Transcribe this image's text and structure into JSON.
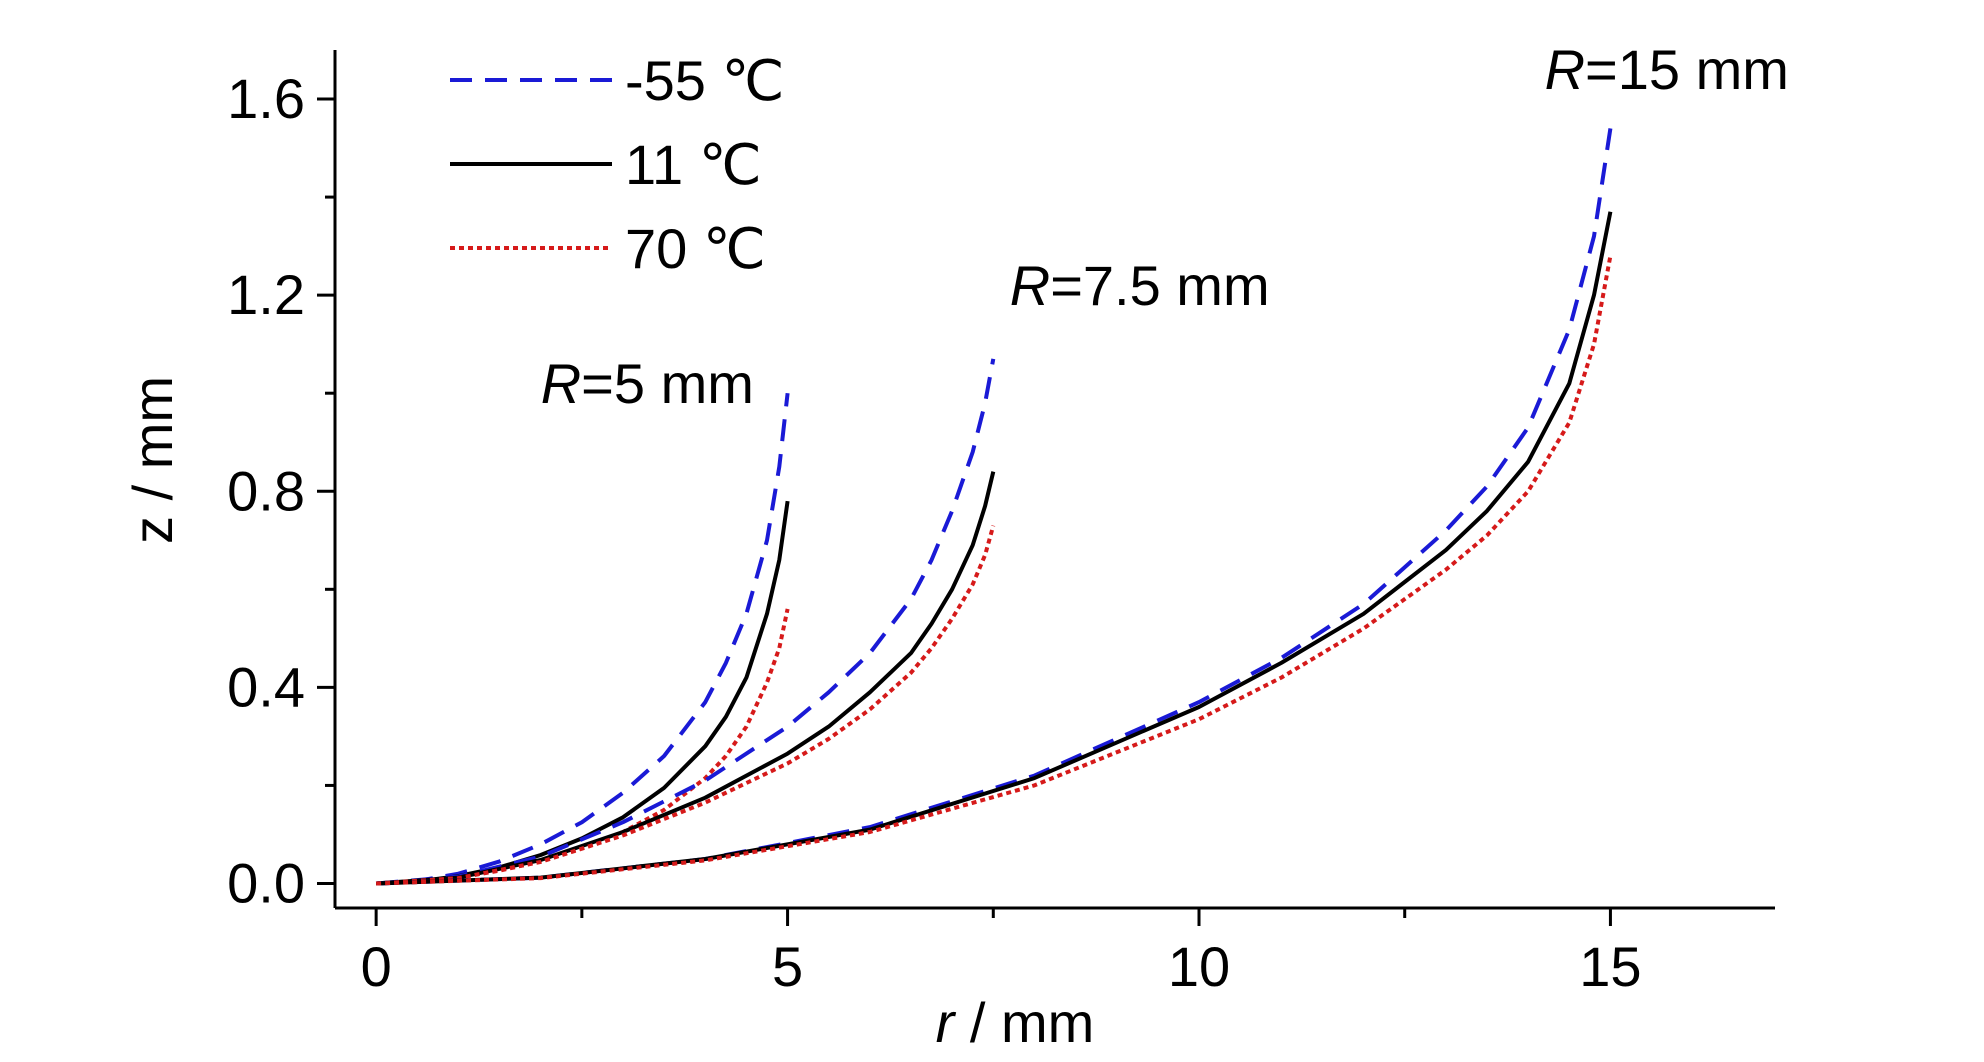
{
  "chart_data": {
    "type": "line",
    "xlabel_italic": "r",
    "xlabel_rest": " / mm",
    "ylabel": "z / mm",
    "xlim": [
      -0.5,
      17
    ],
    "ylim": [
      -0.05,
      1.7
    ],
    "xticks": [
      0,
      5,
      10,
      15
    ],
    "xtick_labels": [
      "0",
      "5",
      "10",
      "15"
    ],
    "yticks": [
      0.0,
      0.4,
      0.8,
      1.2,
      1.6
    ],
    "ytick_labels": [
      "0.0",
      "0.4",
      "0.8",
      "1.2",
      "1.6"
    ],
    "grid": false,
    "legend_position": "top-left",
    "legend": [
      {
        "label": "-55 ℃",
        "color": "#1a1ad6",
        "style": "dashed"
      },
      {
        "label": "11  ℃",
        "color": "#000000",
        "style": "solid"
      },
      {
        "label": "70  ℃",
        "color": "#d61a1a",
        "style": "dotted"
      }
    ],
    "annotations": [
      {
        "italic": "R",
        "rest": "=5 mm",
        "x": 2.0,
        "y": 0.98
      },
      {
        "italic": "R",
        "rest": "=7.5 mm",
        "x": 7.7,
        "y": 1.18
      },
      {
        "italic": "R",
        "rest": "=15 mm",
        "x": 14.2,
        "y": 1.62
      }
    ],
    "series": [
      {
        "group": "R=5 mm",
        "temp": "-55 ℃",
        "color": "#1a1ad6",
        "style": "dashed",
        "x": [
          0,
          0.5,
          1,
          1.5,
          2,
          2.5,
          3,
          3.5,
          4,
          4.25,
          4.5,
          4.75,
          4.9,
          5.0
        ],
        "y": [
          0,
          0.005,
          0.02,
          0.045,
          0.08,
          0.125,
          0.185,
          0.26,
          0.37,
          0.45,
          0.55,
          0.7,
          0.85,
          1.0
        ]
      },
      {
        "group": "R=5 mm",
        "temp": "11  ℃",
        "color": "#000000",
        "style": "solid",
        "x": [
          0,
          0.5,
          1,
          1.5,
          2,
          2.5,
          3,
          3.5,
          4,
          4.25,
          4.5,
          4.75,
          4.9,
          5.0
        ],
        "y": [
          0,
          0.004,
          0.015,
          0.033,
          0.058,
          0.092,
          0.135,
          0.195,
          0.28,
          0.34,
          0.42,
          0.55,
          0.66,
          0.78
        ]
      },
      {
        "group": "R=5 mm",
        "temp": "70  ℃",
        "color": "#d61a1a",
        "style": "dotted",
        "x": [
          0,
          0.5,
          1,
          1.5,
          2,
          2.5,
          3,
          3.5,
          4,
          4.25,
          4.5,
          4.75,
          4.9,
          5.0
        ],
        "y": [
          0,
          0.003,
          0.012,
          0.026,
          0.045,
          0.072,
          0.105,
          0.15,
          0.215,
          0.26,
          0.32,
          0.41,
          0.48,
          0.56
        ]
      },
      {
        "group": "R=7.5 mm",
        "temp": "-55 ℃",
        "color": "#1a1ad6",
        "style": "dashed",
        "x": [
          0,
          1,
          2,
          3,
          4,
          5,
          5.5,
          6,
          6.5,
          6.75,
          7,
          7.25,
          7.4,
          7.5
        ],
        "y": [
          0,
          0.014,
          0.055,
          0.125,
          0.21,
          0.32,
          0.39,
          0.47,
          0.58,
          0.66,
          0.76,
          0.88,
          0.98,
          1.07
        ]
      },
      {
        "group": "R=7.5 mm",
        "temp": "11  ℃",
        "color": "#000000",
        "style": "solid",
        "x": [
          0,
          1,
          2,
          3,
          4,
          5,
          5.5,
          6,
          6.5,
          6.75,
          7,
          7.25,
          7.4,
          7.5
        ],
        "y": [
          0,
          0.012,
          0.048,
          0.105,
          0.175,
          0.265,
          0.32,
          0.39,
          0.47,
          0.53,
          0.6,
          0.69,
          0.77,
          0.84
        ]
      },
      {
        "group": "R=7.5 mm",
        "temp": "70  ℃",
        "color": "#d61a1a",
        "style": "dotted",
        "x": [
          0,
          1,
          2,
          3,
          4,
          5,
          5.5,
          6,
          6.5,
          6.75,
          7,
          7.25,
          7.4,
          7.5
        ],
        "y": [
          0,
          0.011,
          0.044,
          0.098,
          0.165,
          0.245,
          0.295,
          0.355,
          0.43,
          0.48,
          0.54,
          0.61,
          0.67,
          0.73
        ]
      },
      {
        "group": "R=15 mm",
        "temp": "-55 ℃",
        "color": "#1a1ad6",
        "style": "dashed",
        "x": [
          0,
          2,
          4,
          6,
          8,
          10,
          11,
          12,
          13,
          13.5,
          14,
          14.5,
          14.8,
          15.0
        ],
        "y": [
          0,
          0.012,
          0.05,
          0.115,
          0.22,
          0.37,
          0.46,
          0.57,
          0.72,
          0.81,
          0.93,
          1.13,
          1.32,
          1.54
        ]
      },
      {
        "group": "R=15 mm",
        "temp": "11  ℃",
        "color": "#000000",
        "style": "solid",
        "x": [
          0,
          2,
          4,
          6,
          8,
          10,
          11,
          12,
          13,
          13.5,
          14,
          14.5,
          14.8,
          15.0
        ],
        "y": [
          0,
          0.012,
          0.05,
          0.11,
          0.215,
          0.36,
          0.45,
          0.55,
          0.68,
          0.76,
          0.86,
          1.02,
          1.2,
          1.37
        ]
      },
      {
        "group": "R=15 mm",
        "temp": "70  ℃",
        "color": "#d61a1a",
        "style": "dotted",
        "x": [
          0,
          2,
          4,
          6,
          8,
          10,
          11,
          12,
          13,
          13.5,
          14,
          14.5,
          14.8,
          15.0
        ],
        "y": [
          0,
          0.011,
          0.047,
          0.105,
          0.2,
          0.335,
          0.42,
          0.52,
          0.64,
          0.71,
          0.8,
          0.94,
          1.1,
          1.28
        ]
      }
    ]
  }
}
